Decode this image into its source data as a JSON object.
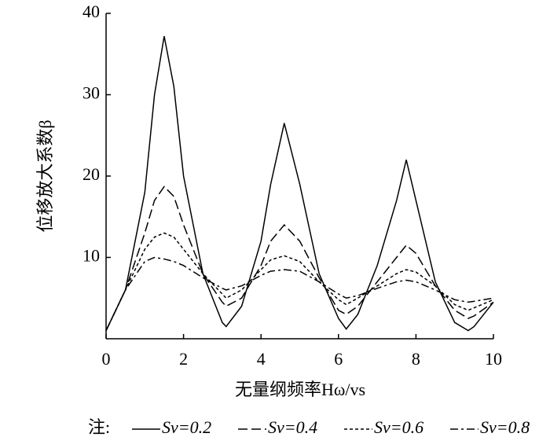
{
  "chart_data": {
    "type": "line",
    "x_label": "无量纲频率Hω/vs",
    "y_label": "位移放大系数β",
    "legend_title": "注:",
    "x": [
      0,
      0.5,
      1,
      1.25,
      1.5,
      1.75,
      2,
      2.5,
      3,
      3.1,
      3.5,
      4,
      4.25,
      4.6,
      5,
      5.5,
      6,
      6.2,
      6.5,
      7,
      7.5,
      7.75,
      8,
      8.5,
      9,
      9.35,
      9.5,
      10
    ],
    "series": [
      {
        "name": "Sv=0.2",
        "color": "#000000",
        "dash": "solid",
        "values": [
          1,
          6,
          18,
          30,
          37.2,
          31,
          20,
          8,
          2,
          1.5,
          4,
          12,
          19,
          26.5,
          19,
          8,
          2.5,
          1.2,
          3,
          9,
          17,
          22,
          17,
          7,
          2,
          1,
          1.5,
          4.5
        ]
      },
      {
        "name": "Sv=0.4",
        "color": "#000000",
        "dash": "long-dash",
        "values": [
          1,
          6,
          13,
          17,
          18.7,
          17.5,
          14,
          8,
          4.5,
          4,
          5,
          9,
          12,
          14,
          12,
          7.5,
          3.5,
          3,
          4,
          7,
          10,
          11.5,
          10.5,
          6.5,
          3.5,
          2.5,
          2.8,
          4.5
        ]
      },
      {
        "name": "Sv=0.6",
        "color": "#000000",
        "dash": "short-dash",
        "values": [
          1,
          6,
          11,
          12.5,
          13,
          12.5,
          11,
          8,
          5.5,
          5,
          6,
          8.5,
          9.7,
          10.2,
          9.5,
          7,
          4.8,
          4.2,
          5,
          6.5,
          8,
          8.5,
          8.2,
          6.5,
          4.2,
          3.5,
          3.8,
          4.8
        ]
      },
      {
        "name": "Sv=0.8",
        "color": "#000000",
        "dash": "dash-dot",
        "values": [
          1,
          6,
          9.5,
          10,
          9.8,
          9.5,
          9,
          7.5,
          6.2,
          6,
          6.5,
          7.8,
          8.3,
          8.5,
          8.3,
          7,
          5.5,
          5,
          5.3,
          6.2,
          7,
          7.2,
          7,
          6,
          4.8,
          4.5,
          4.6,
          5
        ]
      }
    ],
    "xlim": [
      0,
      10
    ],
    "xticks": [
      0,
      2,
      4,
      6,
      8,
      10
    ],
    "ylim": [
      0,
      40
    ],
    "yticks": [
      10,
      20,
      30,
      40
    ],
    "grid": false,
    "legend_position": "bottom"
  }
}
